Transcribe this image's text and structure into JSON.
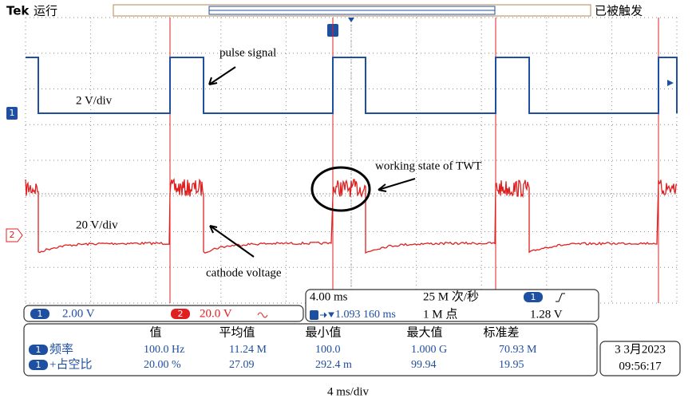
{
  "header": {
    "brand": "Tek",
    "state": "运行",
    "trigger_status": "已被触发"
  },
  "annotations": {
    "pulse": "pulse signal",
    "ch1_scale": "2 V/div",
    "twt": "working state of TWT",
    "ch2_scale": "20 V/div",
    "cathode": "cathode voltage"
  },
  "channels": [
    {
      "label": "1",
      "scale": "2.00 V"
    },
    {
      "label": "2",
      "scale": "20.0 V"
    }
  ],
  "timebase": {
    "scale": "4.00 ms",
    "sample_rate": "25 M 次/秒",
    "position": "1.093 160 ms",
    "record": "1 M 点",
    "trigger_level": "1.28 V"
  },
  "measurements": {
    "headers": [
      "值",
      "平均值",
      "最小值",
      "最大值",
      "标准差"
    ],
    "rows": [
      {
        "name": "频率",
        "values": [
          "100.0 Hz",
          "11.24 M",
          "100.0",
          "1.000 G",
          "70.93 M"
        ]
      },
      {
        "name": "+占空比",
        "values": [
          "20.00 %",
          "27.09",
          "292.4 m",
          "99.94",
          "19.95"
        ]
      }
    ]
  },
  "datetime": {
    "date": "3 3月2023",
    "time": "09:56:17"
  },
  "caption": "4 ms/div"
}
